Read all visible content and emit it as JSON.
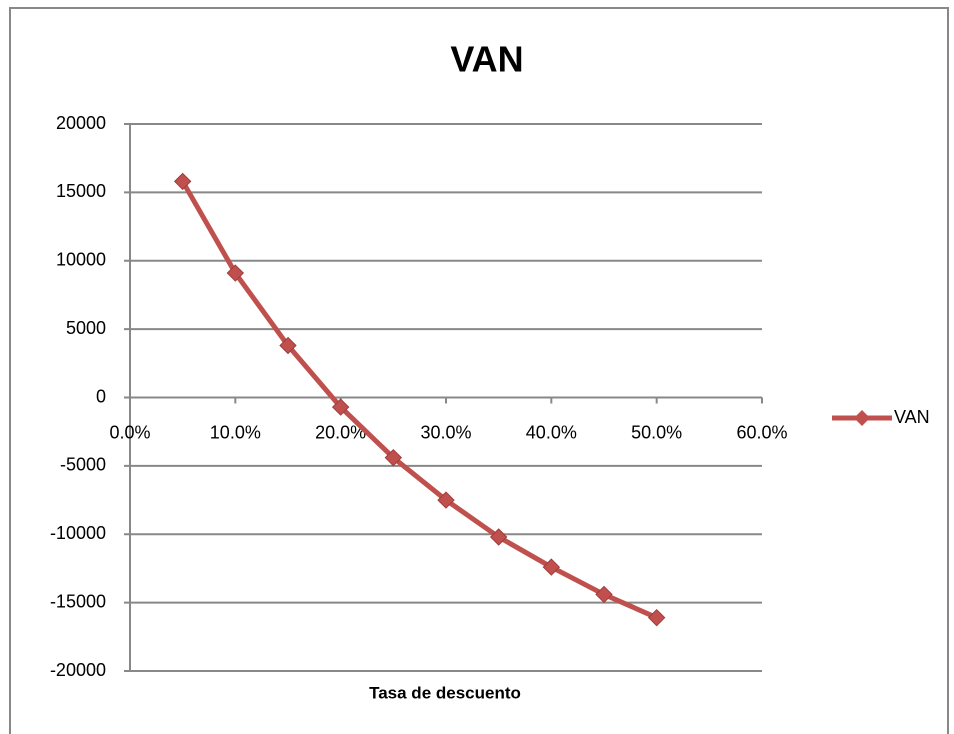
{
  "chart_data": {
    "type": "line",
    "title": "VAN",
    "x_label": "Tasa de descuento",
    "x": [
      5,
      10,
      15,
      20,
      25,
      30,
      35,
      40,
      45,
      50
    ],
    "series": [
      {
        "name": "VAN",
        "color": "#c0504d",
        "values": [
          15800,
          9100,
          3800,
          -700,
          -4400,
          -7500,
          -10200,
          -12400,
          -14400,
          -16100
        ]
      }
    ],
    "xlim": [
      0,
      60
    ],
    "xticks": [
      {
        "value": 0,
        "label": "0.0%"
      },
      {
        "value": 10,
        "label": "10.0%"
      },
      {
        "value": 20,
        "label": "20.0%"
      },
      {
        "value": 30,
        "label": "30.0%"
      },
      {
        "value": 40,
        "label": "40.0%"
      },
      {
        "value": 50,
        "label": "50.0%"
      },
      {
        "value": 60,
        "label": "60.0%"
      }
    ],
    "ylim": [
      -20000,
      20000
    ],
    "yticks": [
      -20000,
      -15000,
      -10000,
      -5000,
      0,
      5000,
      10000,
      15000,
      20000
    ],
    "grid": true,
    "legend": "right"
  }
}
